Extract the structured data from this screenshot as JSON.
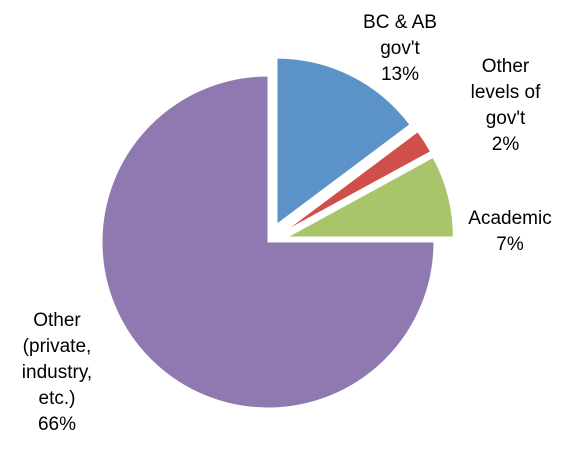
{
  "chart_data": {
    "type": "pie",
    "categories": [
      "BC & AB gov't",
      "Other levels of gov't",
      "Academic",
      "Other (private, industry, etc.)"
    ],
    "values": [
      13,
      2,
      7,
      66
    ],
    "value_labels": [
      "13%",
      "2%",
      "7%",
      "66%"
    ],
    "colors": [
      "#5b93c8",
      "#cf504a",
      "#a8c56a",
      "#8f79b0"
    ],
    "exploded": [
      true,
      true,
      true,
      false
    ]
  }
}
